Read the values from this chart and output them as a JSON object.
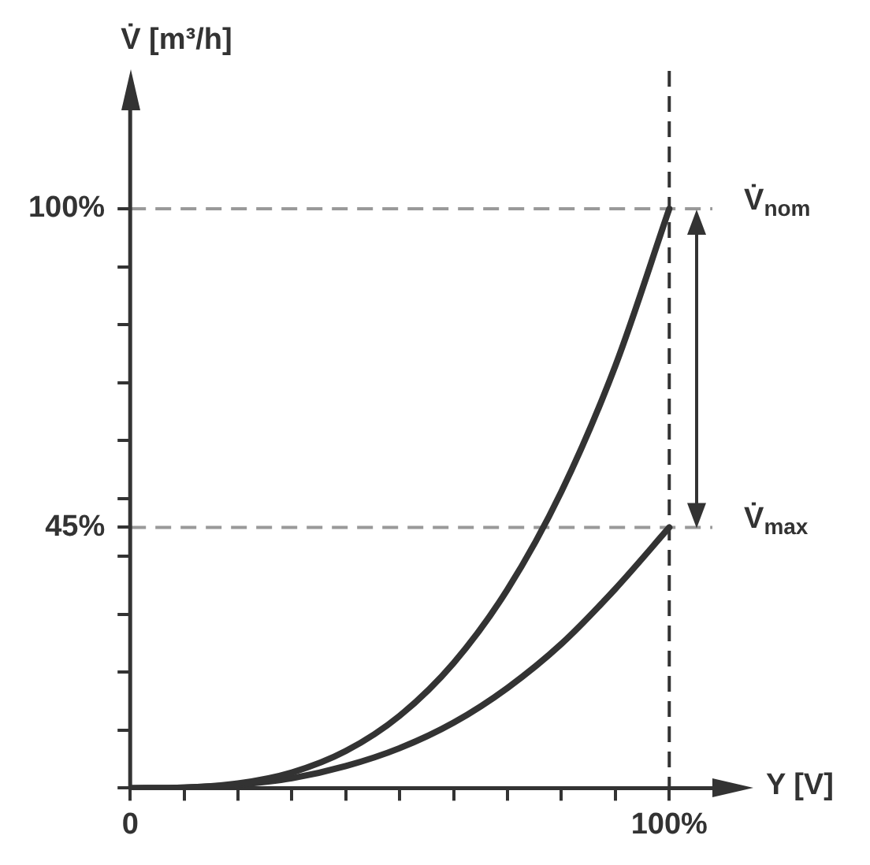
{
  "chart_data": {
    "type": "line",
    "xlabel": "Y [V]",
    "ylabel": "V̇ [m³/h]",
    "x": [
      0,
      10,
      20,
      30,
      40,
      50,
      60,
      70,
      80,
      90,
      100
    ],
    "series": [
      {
        "color": "#333333",
        "values": [
          0,
          0.1,
          0.8,
          2.7,
          6.4,
          12.5,
          21.6,
          34.3,
          51.2,
          72.9,
          100
        ]
      },
      {
        "color": "#333333",
        "values": [
          0,
          0.1,
          0.6,
          1.7,
          3.8,
          6.9,
          11.3,
          17.3,
          24.9,
          34.4,
          45
        ]
      }
    ],
    "xlim": [
      0,
      108
    ],
    "ylim": [
      0,
      117
    ],
    "xticks": [
      {
        "value": 0,
        "label": "0"
      },
      {
        "value": 10,
        "label": null
      },
      {
        "value": 20,
        "label": null
      },
      {
        "value": 30,
        "label": null
      },
      {
        "value": 40,
        "label": null
      },
      {
        "value": 50,
        "label": null
      },
      {
        "value": 60,
        "label": null
      },
      {
        "value": 70,
        "label": null
      },
      {
        "value": 80,
        "label": null
      },
      {
        "value": 90,
        "label": null
      },
      {
        "value": 100,
        "label": "100%"
      }
    ],
    "yticks": [
      {
        "value": 0,
        "label": null
      },
      {
        "value": 10,
        "label": null
      },
      {
        "value": 20,
        "label": null
      },
      {
        "value": 30,
        "label": null
      },
      {
        "value": 40,
        "label": null
      },
      {
        "value": 45,
        "label": "45%"
      },
      {
        "value": 50,
        "label": null
      },
      {
        "value": 60,
        "label": null
      },
      {
        "value": 70,
        "label": null
      },
      {
        "value": 80,
        "label": null
      },
      {
        "value": 90,
        "label": null
      },
      {
        "value": 100,
        "label": "100%"
      }
    ],
    "ref_lines": [
      {
        "axis": "y",
        "value": 100,
        "label": "V̇$_{nom}$",
        "color": "#999999",
        "line_style": "dashed"
      },
      {
        "axis": "y",
        "value": 45,
        "label": "V̇$_{max}$",
        "color": "#999999",
        "line_style": "dashed"
      },
      {
        "axis": "x",
        "value": 100,
        "color": "#333333",
        "line_style": "dashed"
      }
    ],
    "grid": false,
    "legend": false,
    "marker": "none",
    "line_style": "solid"
  }
}
